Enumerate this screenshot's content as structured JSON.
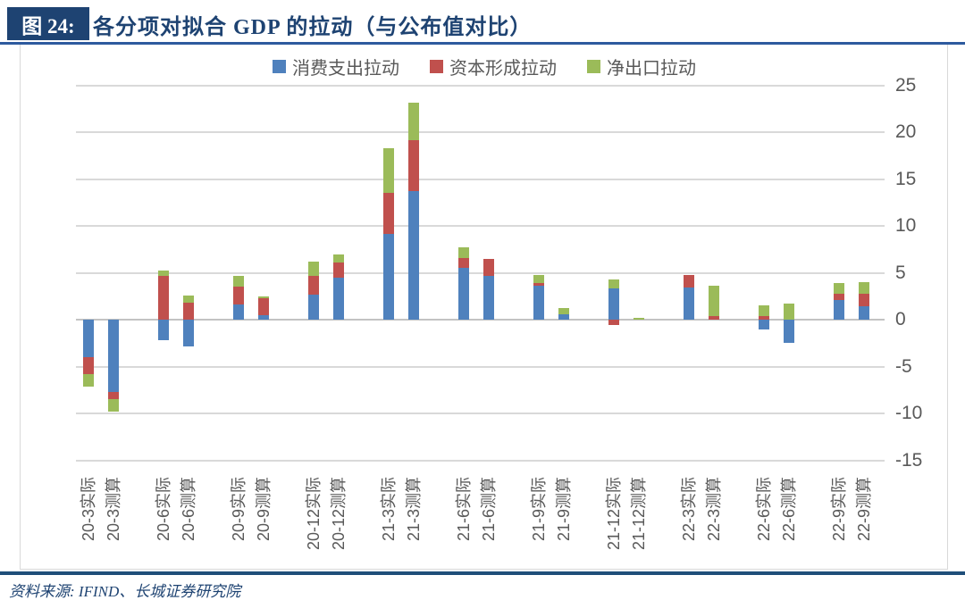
{
  "header": {
    "figure_label": "图 24:",
    "title": "各分项对拟合 GDP 的拉动（与公布值对比）"
  },
  "footer": {
    "source": "资料来源: IFIND、长城证券研究院"
  },
  "colors": {
    "consumption": "#4F81BD",
    "capital": "#C0504D",
    "net_exports": "#9BBB59",
    "title_navy": "#1E4372",
    "rule_blue": "#2D5A9E",
    "axis_text": "#595959"
  },
  "chart_data": {
    "type": "bar",
    "stacked": true,
    "title": "各分项对拟合 GDP 的拉动（与公布值对比）",
    "xlabel": "",
    "ylabel": "",
    "ylim": [
      -15,
      25
    ],
    "yticks": [
      25,
      20,
      15,
      10,
      5,
      0,
      -5,
      -10,
      -15
    ],
    "grid": true,
    "legend_position": "top-center",
    "categories": [
      "20-3实际",
      "20-3测算",
      "20-6实际",
      "20-6测算",
      "20-9实际",
      "20-9测算",
      "20-12实际",
      "20-12测算",
      "21-3实际",
      "21-3测算",
      "21-6实际",
      "21-6测算",
      "21-9实际",
      "21-9测算",
      "21-12实际",
      "21-12测算",
      "22-3实际",
      "22-3测算",
      "22-6实际",
      "22-6测算",
      "22-9实际",
      "22-9测算"
    ],
    "series": [
      {
        "name": "消费支出拉动",
        "color": "#4F81BD",
        "values": [
          -4.0,
          -7.7,
          -2.2,
          -2.9,
          1.6,
          0.5,
          2.7,
          4.5,
          9.1,
          13.7,
          5.5,
          4.7,
          3.6,
          0.6,
          3.3,
          0,
          3.4,
          0,
          -1.0,
          -2.5,
          2.1,
          1.4
        ]
      },
      {
        "name": "资本形成拉动",
        "color": "#C0504D",
        "values": [
          -1.8,
          -0.8,
          4.7,
          1.8,
          1.9,
          1.8,
          2.0,
          1.6,
          4.4,
          5.4,
          1.1,
          1.8,
          0.3,
          0,
          -0.6,
          0,
          1.4,
          0.4,
          0.4,
          0,
          0.7,
          1.4
        ]
      },
      {
        "name": "净出口拉动",
        "color": "#9BBB59",
        "values": [
          -1.3,
          -1.3,
          0.5,
          0.8,
          1.2,
          0.2,
          1.5,
          0.9,
          4.8,
          4.0,
          1.1,
          0,
          0.9,
          0.6,
          1.0,
          0.2,
          0,
          3.2,
          1.1,
          1.7,
          1.1,
          1.2
        ]
      }
    ]
  }
}
